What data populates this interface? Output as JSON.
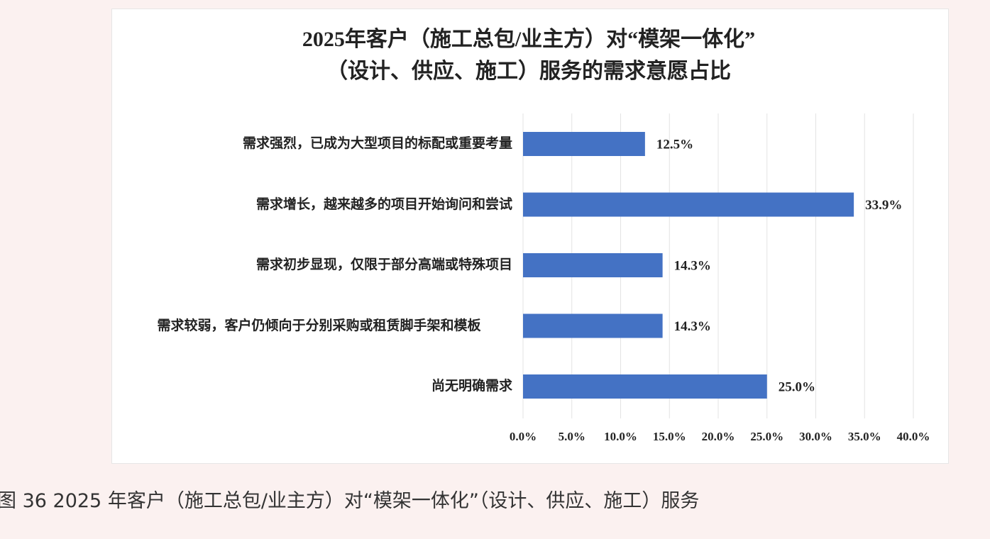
{
  "chart_data": {
    "type": "hbar",
    "title": "2025年客户（施工总包/业主方）对“模架一体化”",
    "subtitle": "（设计、供应、施工）服务的需求意愿占比",
    "categories": [
      "需求强烈，已成为大型项目的标配或重要考量",
      "需求增长，越来越多的项目开始询问和尝试",
      "需求初步显现，仅限于部分高端或特殊项目",
      "需求较弱，客户仍倾向于分别采购或租赁脚手架和模板",
      "尚无明确需求"
    ],
    "values": [
      12.5,
      33.9,
      14.3,
      14.3,
      25.0
    ],
    "value_labels": [
      "12.5%",
      "33.9%",
      "14.3%",
      "14.3%",
      "25.0%"
    ],
    "color": "#4472c4",
    "xlim": [
      0,
      40
    ],
    "xticks": [
      {
        "value": 0,
        "label": "0.0%"
      },
      {
        "value": 5,
        "label": "5.0%"
      },
      {
        "value": 10,
        "label": "10.0%"
      },
      {
        "value": 15,
        "label": "15.0%"
      },
      {
        "value": 20,
        "label": "20.0%"
      },
      {
        "value": 25,
        "label": "25.0%"
      },
      {
        "value": 30,
        "label": "30.0%"
      },
      {
        "value": 35,
        "label": "35.0%"
      },
      {
        "value": 40,
        "label": "40.0%"
      }
    ],
    "grid": true
  },
  "caption": "图 36 2025 年客户（施工总包/业主方）对“模架一体化”（设计、供应、施工）服务"
}
